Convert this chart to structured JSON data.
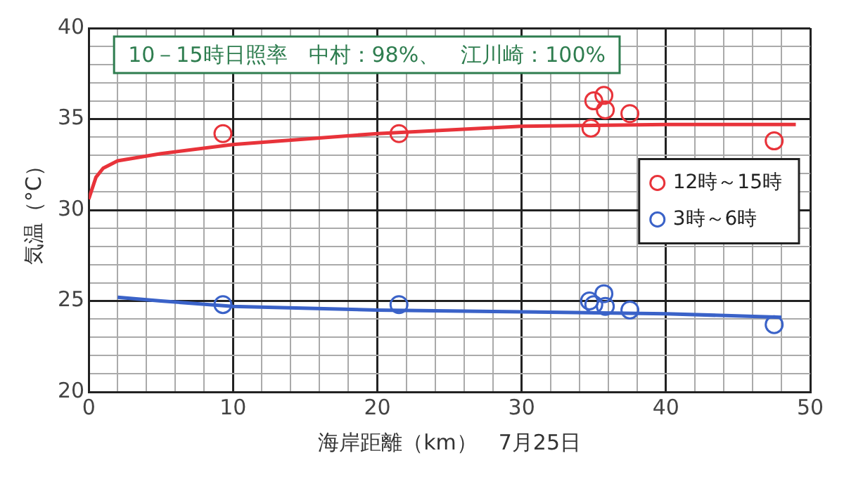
{
  "chart_data": {
    "type": "scatter",
    "xlabel": "海岸距離（km）　7月25日",
    "ylabel": "気温（°C）",
    "annotations": [
      "10－15時日照率　中村：98%、　江川崎：100%"
    ],
    "xlim": [
      0,
      50
    ],
    "xticks": [
      0,
      10,
      20,
      30,
      40,
      50
    ],
    "ylim": [
      20,
      40
    ],
    "yticks": [
      20,
      25,
      30,
      35,
      40
    ],
    "grid": true,
    "legend": "right",
    "series": [
      {
        "name": "12時～15時",
        "color": "#e8333a",
        "marker": "circle",
        "x": [
          9.3,
          21.5,
          34.8,
          35,
          35.7,
          35.8,
          37.5,
          47.5
        ],
        "values": [
          34.2,
          34.2,
          34.5,
          36,
          36.3,
          35.5,
          35.3,
          33.8
        ]
      },
      {
        "name": "3時～6時",
        "color": "#3a62c8",
        "marker": "circle",
        "x": [
          9.3,
          21.5,
          34.7,
          35,
          35.7,
          35.8,
          37.5,
          47.5
        ],
        "values": [
          24.8,
          24.8,
          25,
          24.8,
          25.4,
          24.7,
          24.5,
          23.7
        ]
      },
      {
        "type": "line",
        "color": "#e8333a",
        "marker": "none",
        "x": [
          0,
          0.5,
          1,
          2,
          5,
          10,
          20,
          30,
          40,
          49
        ],
        "values": [
          30.6,
          31.8,
          32.3,
          32.7,
          33.1,
          33.6,
          34.2,
          34.6,
          34.7,
          34.7
        ]
      },
      {
        "type": "line",
        "color": "#3a62c8",
        "marker": "none",
        "x": [
          2,
          5,
          10,
          20,
          30,
          40,
          48
        ],
        "values": [
          25.2,
          25,
          24.7,
          24.5,
          24.4,
          24.3,
          24.1
        ]
      }
    ]
  }
}
